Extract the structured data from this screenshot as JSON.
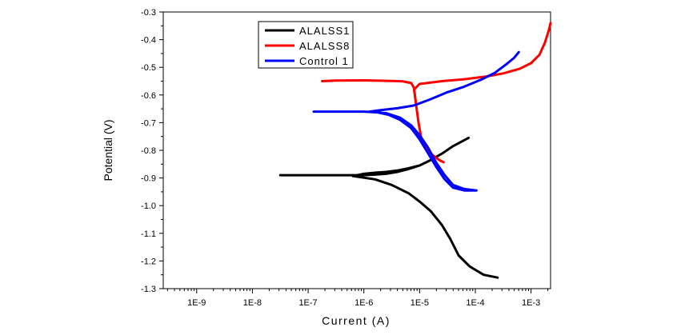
{
  "chart_data": {
    "type": "line",
    "title": "",
    "xlabel": "Current (A)",
    "ylabel": "Potential (V)",
    "x_scale": "log",
    "x_min_exp": -9.6,
    "x_max_exp": -2.65,
    "x_ticks": [
      {
        "exp": -9,
        "label": "1E-9"
      },
      {
        "exp": -8,
        "label": "1E-8"
      },
      {
        "exp": -7,
        "label": "1E-7"
      },
      {
        "exp": -6,
        "label": "1E-6"
      },
      {
        "exp": -5,
        "label": "1E-5"
      },
      {
        "exp": -4,
        "label": "1E-4"
      },
      {
        "exp": -3,
        "label": "1E-3"
      }
    ],
    "ylim": [
      -1.3,
      -0.3
    ],
    "y_ticks": [
      {
        "value": -0.3,
        "label": "-0.3"
      },
      {
        "value": -0.4,
        "label": "-0.4"
      },
      {
        "value": -0.5,
        "label": "-0.5"
      },
      {
        "value": -0.6,
        "label": "-0.6"
      },
      {
        "value": -0.7,
        "label": "-0.7"
      },
      {
        "value": -0.8,
        "label": "-0.8"
      },
      {
        "value": -0.9,
        "label": "-0.9"
      },
      {
        "value": -1.0,
        "label": "-1.0"
      },
      {
        "value": -1.1,
        "label": "-1.1"
      },
      {
        "value": -1.2,
        "label": "-1.2"
      },
      {
        "value": -1.3,
        "label": "-1.3"
      }
    ],
    "grid": false,
    "legend_position": "top-left",
    "series": [
      {
        "name": "ALALSS1",
        "color": "#000000",
        "points": [
          [
            -7.5,
            -0.89
          ],
          [
            -7.0,
            -0.89
          ],
          [
            -6.5,
            -0.89
          ],
          [
            -6.0,
            -0.89
          ],
          [
            -5.8,
            -0.888
          ],
          [
            -5.6,
            -0.885
          ],
          [
            -5.4,
            -0.878
          ],
          [
            -5.2,
            -0.868
          ],
          [
            -5.0,
            -0.855
          ],
          [
            -4.8,
            -0.835
          ],
          [
            -4.6,
            -0.812
          ],
          [
            -4.4,
            -0.785
          ],
          [
            -4.12,
            -0.755
          ],
          [
            -4.12,
            -0.755
          ],
          [
            -4.4,
            -0.785
          ],
          [
            -4.6,
            -0.812
          ],
          [
            -4.8,
            -0.835
          ],
          [
            -5.0,
            -0.855
          ],
          [
            -5.2,
            -0.865
          ],
          [
            -5.4,
            -0.873
          ],
          [
            -5.6,
            -0.878
          ],
          [
            -5.8,
            -0.881
          ],
          [
            -6.0,
            -0.885
          ],
          [
            -6.2,
            -0.893
          ],
          [
            -5.8,
            -0.905
          ],
          [
            -5.5,
            -0.925
          ],
          [
            -5.2,
            -0.955
          ],
          [
            -5.0,
            -0.985
          ],
          [
            -4.8,
            -1.02
          ],
          [
            -4.6,
            -1.07
          ],
          [
            -4.45,
            -1.12
          ],
          [
            -4.3,
            -1.18
          ],
          [
            -4.1,
            -1.22
          ],
          [
            -3.85,
            -1.25
          ],
          [
            -3.6,
            -1.26
          ]
        ]
      },
      {
        "name": "ALALSS8",
        "color": "#ff0000",
        "points": [
          [
            -6.75,
            -0.55
          ],
          [
            -6.5,
            -0.548
          ],
          [
            -6.0,
            -0.547
          ],
          [
            -5.5,
            -0.549
          ],
          [
            -5.3,
            -0.551
          ],
          [
            -5.15,
            -0.557
          ],
          [
            -5.1,
            -0.575
          ],
          [
            -5.06,
            -0.64
          ],
          [
            -5.02,
            -0.7
          ],
          [
            -4.97,
            -0.755
          ],
          [
            -4.9,
            -0.79
          ],
          [
            -4.78,
            -0.815
          ],
          [
            -4.65,
            -0.835
          ],
          [
            -4.57,
            -0.843
          ],
          [
            -4.57,
            -0.843
          ],
          [
            -4.65,
            -0.835
          ],
          [
            -4.78,
            -0.815
          ],
          [
            -4.9,
            -0.79
          ],
          [
            -4.97,
            -0.755
          ],
          [
            -5.02,
            -0.7
          ],
          [
            -5.06,
            -0.64
          ],
          [
            -5.1,
            -0.58
          ],
          [
            -5.0,
            -0.56
          ],
          [
            -4.6,
            -0.55
          ],
          [
            -4.2,
            -0.543
          ],
          [
            -3.8,
            -0.533
          ],
          [
            -3.5,
            -0.522
          ],
          [
            -3.2,
            -0.505
          ],
          [
            -3.0,
            -0.485
          ],
          [
            -2.85,
            -0.455
          ],
          [
            -2.75,
            -0.41
          ],
          [
            -2.68,
            -0.365
          ],
          [
            -2.65,
            -0.34
          ]
        ]
      },
      {
        "name": "Control 1",
        "color": "#0000ff",
        "points": [
          [
            -6.9,
            -0.66
          ],
          [
            -6.5,
            -0.66
          ],
          [
            -6.0,
            -0.66
          ],
          [
            -5.75,
            -0.663
          ],
          [
            -5.55,
            -0.672
          ],
          [
            -5.35,
            -0.69
          ],
          [
            -5.15,
            -0.72
          ],
          [
            -5.0,
            -0.76
          ],
          [
            -4.85,
            -0.81
          ],
          [
            -4.7,
            -0.86
          ],
          [
            -4.55,
            -0.905
          ],
          [
            -4.4,
            -0.935
          ],
          [
            -4.2,
            -0.945
          ],
          [
            -3.98,
            -0.945
          ],
          [
            -3.98,
            -0.945
          ],
          [
            -4.2,
            -0.94
          ],
          [
            -4.4,
            -0.925
          ],
          [
            -4.55,
            -0.89
          ],
          [
            -4.7,
            -0.845
          ],
          [
            -4.85,
            -0.79
          ],
          [
            -5.0,
            -0.745
          ],
          [
            -5.15,
            -0.71
          ],
          [
            -5.35,
            -0.682
          ],
          [
            -5.6,
            -0.666
          ],
          [
            -5.9,
            -0.66
          ],
          [
            -5.7,
            -0.655
          ],
          [
            -5.4,
            -0.648
          ],
          [
            -5.1,
            -0.638
          ],
          [
            -4.8,
            -0.615
          ],
          [
            -4.5,
            -0.59
          ],
          [
            -4.2,
            -0.57
          ],
          [
            -3.9,
            -0.545
          ],
          [
            -3.65,
            -0.52
          ],
          [
            -3.45,
            -0.49
          ],
          [
            -3.3,
            -0.465
          ],
          [
            -3.22,
            -0.445
          ]
        ]
      }
    ]
  }
}
